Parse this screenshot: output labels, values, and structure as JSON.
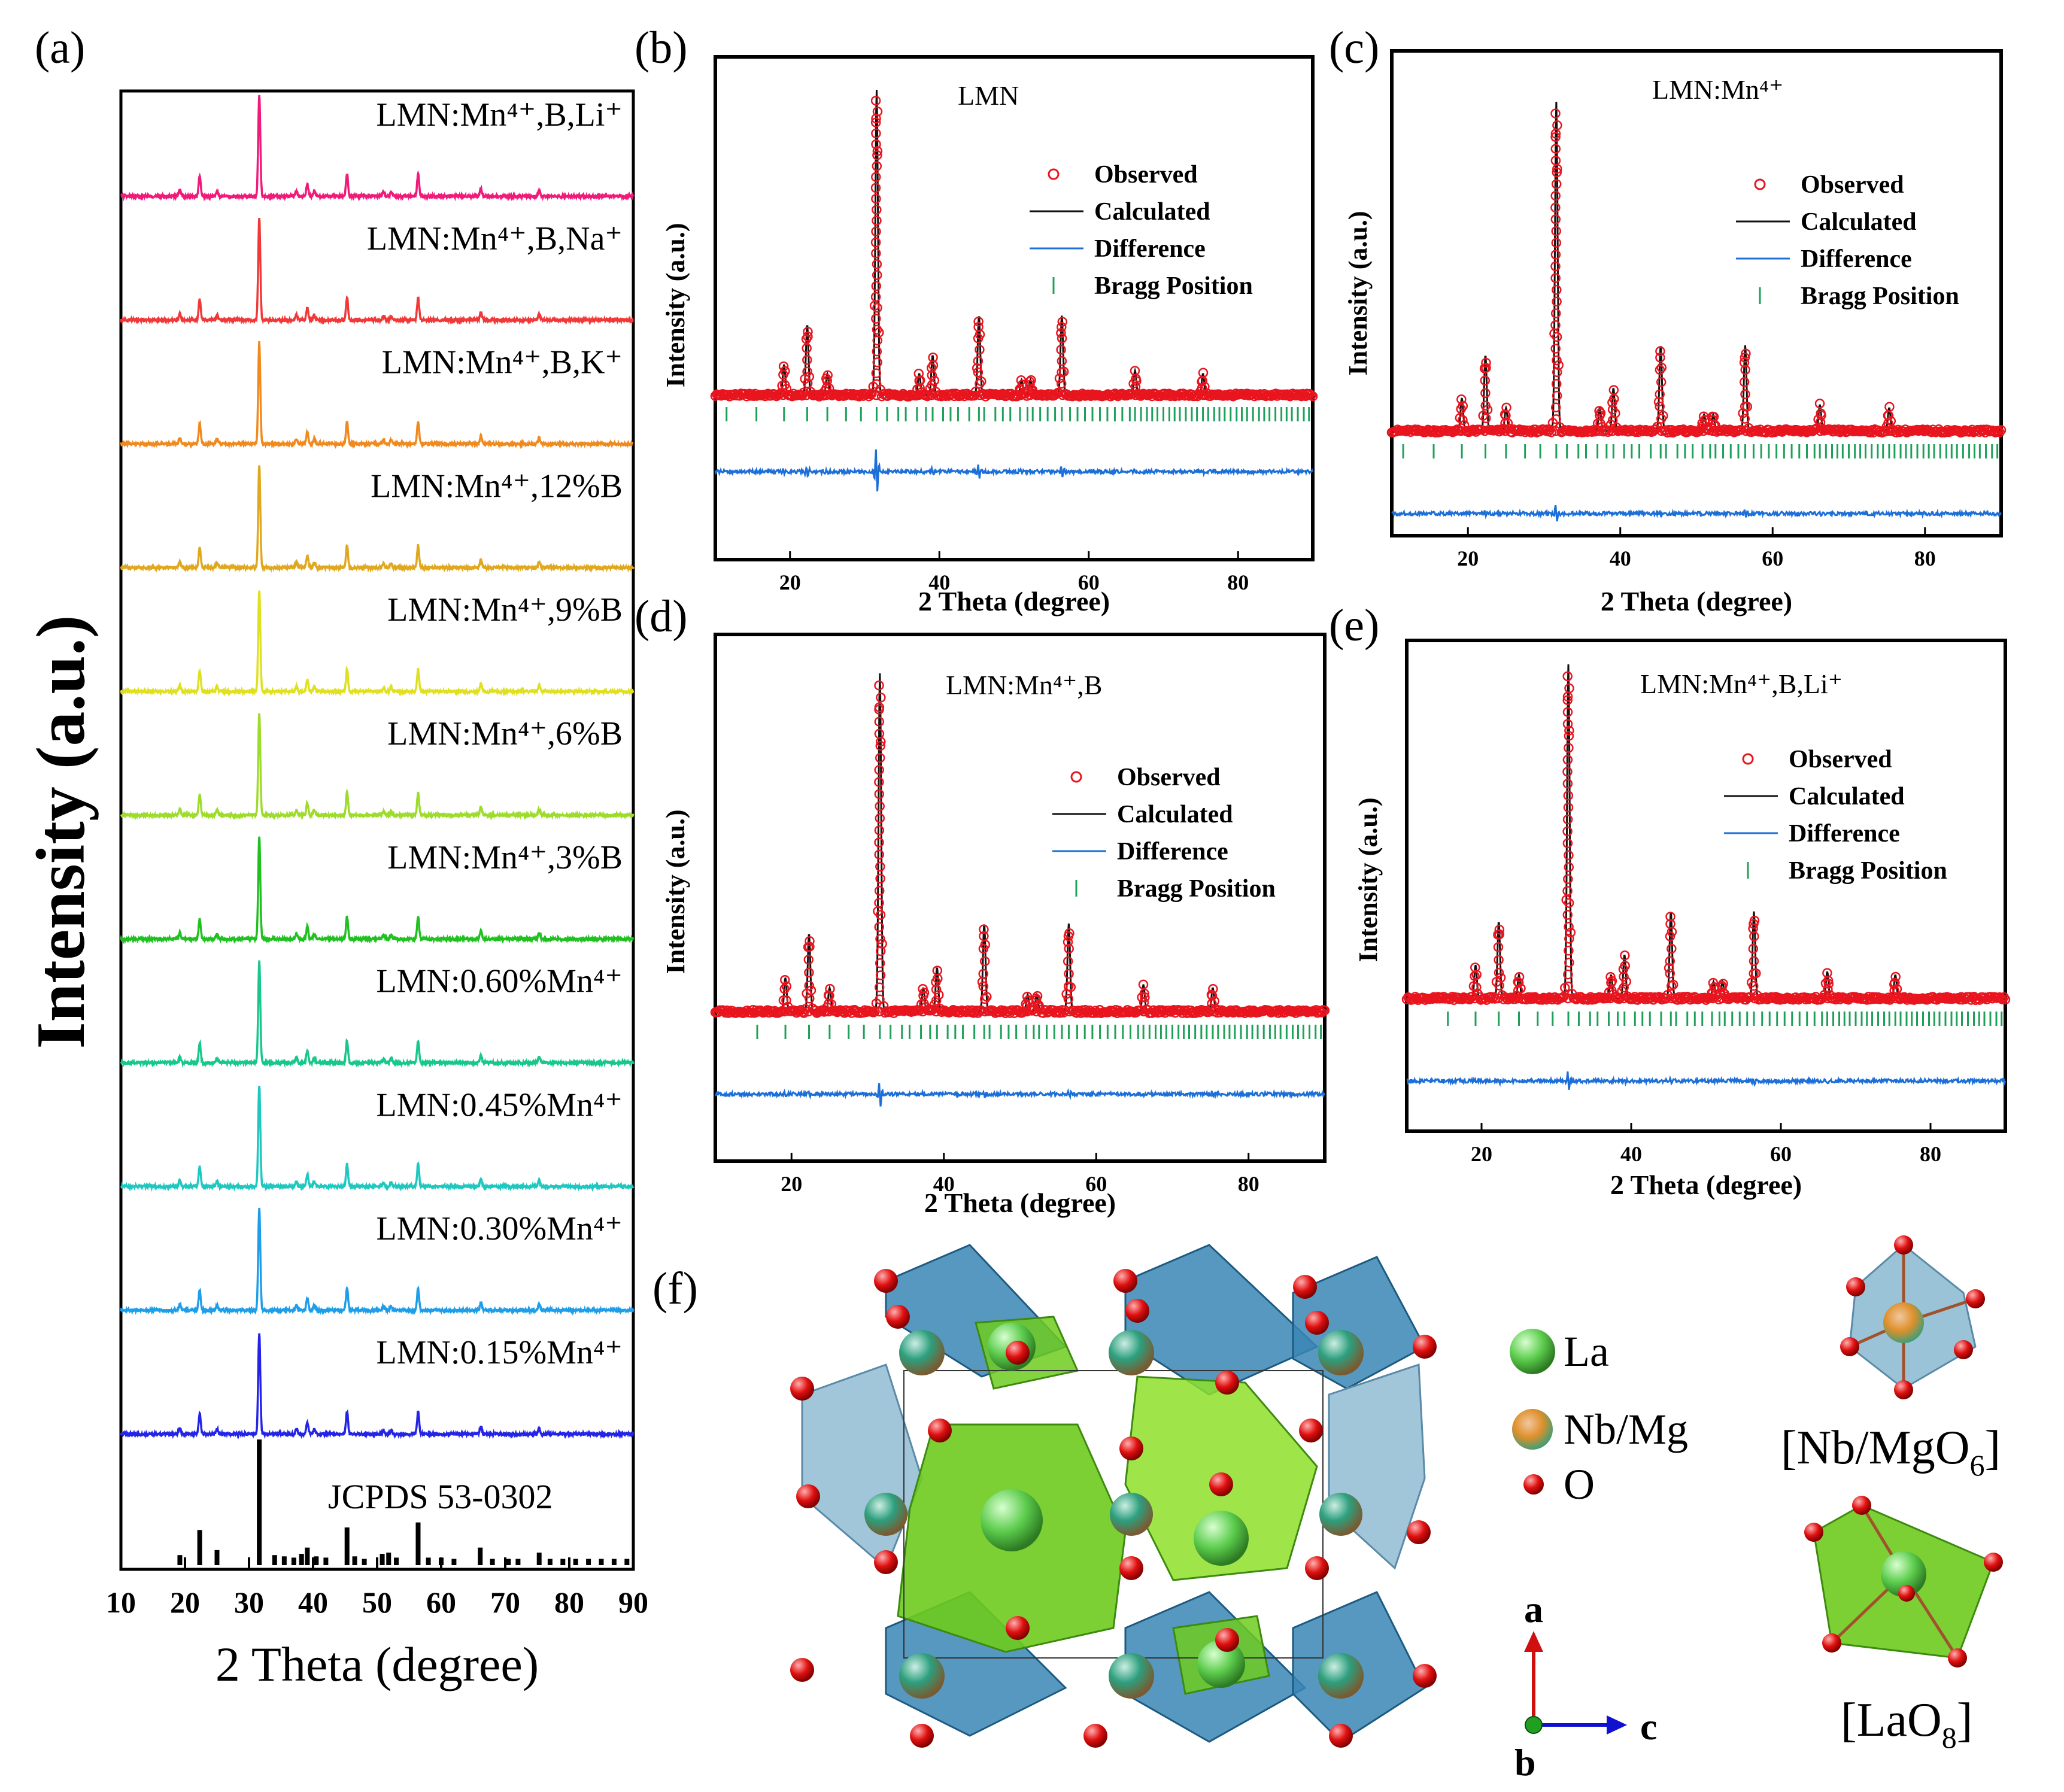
{
  "panels": {
    "a": {
      "label": "(a)",
      "type": "line",
      "xlabel": "2 Theta (degree)",
      "ylabel": "Intensity (a.u.)",
      "xlim": [
        10,
        90
      ],
      "xticks": [
        "10",
        "20",
        "30",
        "40",
        "50",
        "60",
        "70",
        "80",
        "90"
      ],
      "reference": {
        "name": "JCPDS 53-0302",
        "color": "#000000",
        "peaks": [
          [
            19.2,
            0.08
          ],
          [
            22.3,
            0.28
          ],
          [
            25,
            0.12
          ],
          [
            31.6,
            1.0
          ],
          [
            34,
            0.08
          ],
          [
            35.5,
            0.07
          ],
          [
            37,
            0.06
          ],
          [
            38.2,
            0.09
          ],
          [
            39.1,
            0.14
          ],
          [
            40.5,
            0.07
          ],
          [
            42,
            0.06
          ],
          [
            45.3,
            0.3
          ],
          [
            46.5,
            0.07
          ],
          [
            48,
            0.05
          ],
          [
            50.8,
            0.09
          ],
          [
            51.8,
            0.1
          ],
          [
            53,
            0.06
          ],
          [
            56.4,
            0.34
          ],
          [
            58,
            0.06
          ],
          [
            60,
            0.06
          ],
          [
            62,
            0.05
          ],
          [
            66.1,
            0.14
          ],
          [
            68,
            0.05
          ],
          [
            70.5,
            0.05
          ],
          [
            72,
            0.05
          ],
          [
            75.3,
            0.1
          ],
          [
            77,
            0.05
          ],
          [
            79,
            0.05
          ],
          [
            81,
            0.05
          ],
          [
            83,
            0.05
          ],
          [
            85,
            0.05
          ],
          [
            87,
            0.05
          ],
          [
            89,
            0.05
          ]
        ]
      },
      "series": [
        {
          "name": "LMN:0.15%Mn⁴⁺",
          "color": "#2424e8"
        },
        {
          "name": "LMN:0.30%Mn⁴⁺",
          "color": "#1e9ee8"
        },
        {
          "name": "LMN:0.45%Mn⁴⁺",
          "color": "#1ec8c0"
        },
        {
          "name": "LMN:0.60%Mn⁴⁺",
          "color": "#18c88a"
        },
        {
          "name": "LMN:Mn⁴⁺,3%B",
          "color": "#20c020"
        },
        {
          "name": "LMN:Mn⁴⁺,6%B",
          "color": "#9edc2c"
        },
        {
          "name": "LMN:Mn⁴⁺,9%B",
          "color": "#e0e020"
        },
        {
          "name": "LMN:Mn⁴⁺,12%B",
          "color": "#e0a81e"
        },
        {
          "name": "LMN:Mn⁴⁺,B,K⁺",
          "color": "#f08a1e"
        },
        {
          "name": "LMN:Mn⁴⁺,B,Na⁺",
          "color": "#f03838"
        },
        {
          "name": "LMN:Mn⁴⁺,B,Li⁺",
          "color": "#f01a7a"
        }
      ],
      "peaks": [
        [
          19.2,
          0.06
        ],
        [
          22.3,
          0.2
        ],
        [
          25,
          0.05
        ],
        [
          31.6,
          1.0
        ],
        [
          37.4,
          0.05
        ],
        [
          39.1,
          0.12
        ],
        [
          40.2,
          0.05
        ],
        [
          45.3,
          0.22
        ],
        [
          51,
          0.04
        ],
        [
          52.2,
          0.04
        ],
        [
          56.4,
          0.22
        ],
        [
          66.2,
          0.08
        ],
        [
          75.3,
          0.06
        ]
      ]
    },
    "b": {
      "label": "(b)",
      "title": "LMN"
    },
    "c": {
      "label": "(c)",
      "title": "LMN:Mn⁴⁺"
    },
    "d": {
      "label": "(d)",
      "title": "LMN:Mn⁴⁺,B"
    },
    "e": {
      "label": "(e)",
      "title": "LMN:Mn⁴⁺,B,Li⁺"
    },
    "f": {
      "label": "(f)"
    }
  },
  "refinement": {
    "xlabel": "2 Theta (degree)",
    "ylabel": "Intensity (a.u.)",
    "xlim": [
      10,
      90
    ],
    "xticks": [
      "20",
      "40",
      "60",
      "80"
    ],
    "legend": [
      "Observed",
      "Calculated",
      "Difference",
      "Bragg Position"
    ],
    "colors": {
      "observed": "#e8141e",
      "calculated": "#111111",
      "difference": "#1c6fd8",
      "bragg": "#1fa05a"
    },
    "peaks": [
      [
        19.2,
        0.1
      ],
      [
        22.3,
        0.23
      ],
      [
        25,
        0.07
      ],
      [
        31.6,
        1.0
      ],
      [
        37.3,
        0.07
      ],
      [
        39.1,
        0.13
      ],
      [
        45.3,
        0.26
      ],
      [
        51,
        0.05
      ],
      [
        52.2,
        0.05
      ],
      [
        56.4,
        0.26
      ],
      [
        66.2,
        0.08
      ],
      [
        75.3,
        0.07
      ]
    ],
    "bragg_positions": [
      11.5,
      15.5,
      19.2,
      22.3,
      25,
      27.5,
      29.5,
      31.6,
      33,
      34.5,
      35.5,
      37,
      38.2,
      39.1,
      40.5,
      41.5,
      42.5,
      44,
      45.3,
      46,
      47.5,
      48.5,
      49.5,
      50.8,
      51.8,
      52.5,
      53.5,
      54.5,
      55.5,
      56.4,
      57.5,
      58.5,
      59.5,
      60.5,
      61.5,
      62.5,
      63.5,
      64.5,
      65.5,
      66.2,
      67,
      67.8,
      68.5,
      69.2,
      70,
      70.8,
      71.5,
      72.2,
      73,
      73.8,
      74.5,
      75.3,
      76,
      76.8,
      77.5,
      78.2,
      79,
      79.8,
      80.5,
      81.2,
      82,
      82.8,
      83.5,
      84.2,
      85,
      85.8,
      86.5,
      87.2,
      88,
      88.8,
      89.5
    ]
  },
  "structure": {
    "legend": [
      {
        "name": "La",
        "color": "#5ccc4c"
      },
      {
        "name": "Nb/Mg",
        "color": "#2d9f7e"
      },
      {
        "name": "O",
        "color": "#e01010"
      }
    ],
    "polyhedra": [
      "[Nb/MgO",
      "6",
      "]",
      "[LaO",
      "8",
      "]"
    ],
    "axes": [
      "a",
      "c",
      "b"
    ]
  }
}
